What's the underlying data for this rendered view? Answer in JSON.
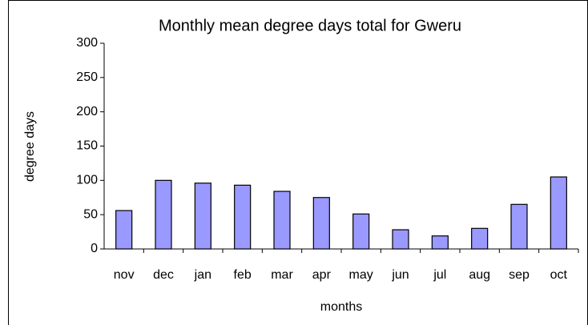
{
  "chart_data": {
    "type": "bar",
    "title": "Monthly mean degree days total for Gweru",
    "x_label": "months",
    "y_label": "degree days",
    "categories": [
      "nov",
      "dec",
      "jan",
      "feb",
      "mar",
      "apr",
      "may",
      "jun",
      "jul",
      "aug",
      "sep",
      "oct"
    ],
    "values": [
      56,
      100,
      96,
      93,
      84,
      75,
      51,
      28,
      19,
      30,
      65,
      105
    ],
    "color": "#9999ff",
    "ylim": [
      0,
      300
    ],
    "yticks": [
      0,
      50,
      100,
      150,
      200,
      250,
      300
    ],
    "grid": false
  }
}
